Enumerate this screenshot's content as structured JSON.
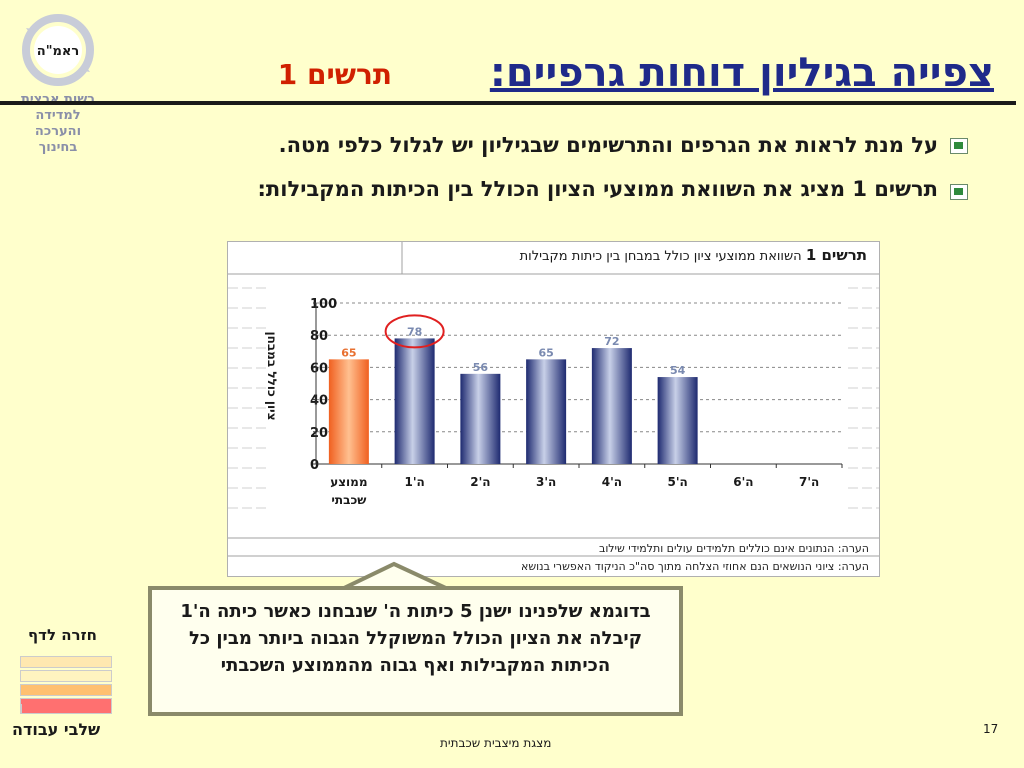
{
  "header": {
    "title": "צפייה בגיליון דוחות גרפיים:",
    "subtitle": "תרשים 1"
  },
  "logo": {
    "label": "ראמ\"ה",
    "org_lines": [
      "רשות ארצית",
      "למדידה",
      "והערכה",
      "בחינוך"
    ]
  },
  "bullets": [
    {
      "text": "על מנת לראות את הגרפים והתרשימים שבגיליון יש לגלול כלפי מטה.",
      "icon": "excel-icon"
    },
    {
      "text": "תרשים 1 מציג את השוואת ממוצעי הציון הכולל בין הכיתות המקבילות:",
      "icon": "excel-icon"
    }
  ],
  "chart_panel": {
    "title_bold": "תרשים 1",
    "title_rest": "השוואת ממוצעי ציון כולל במבחן בין כיתות מקבילות",
    "notes": [
      "הערה: הנתונים אינם כוללים תלמידים עולים ותלמידי שילוב",
      "הערה: ציוני הנושאים הנם אחוזי הצלחה מתוך סה\"כ הניקוד האפשרי בנושא"
    ]
  },
  "chart_data": {
    "type": "bar",
    "ylabel": "ציון כולל במבחן",
    "ylim": [
      0,
      100
    ],
    "yticks": [
      0,
      20,
      40,
      60,
      80,
      100
    ],
    "categories": [
      "ממוצע שכבתי",
      "ה'1",
      "ה'2",
      "ה'3",
      "ה'4",
      "ה'5",
      "ה'6",
      "ה'7"
    ],
    "values": [
      65,
      78,
      56,
      65,
      72,
      54,
      null,
      null
    ],
    "highlight_index": 1,
    "colors": {
      "average": "#f07030",
      "class": "#2a3a8a",
      "label_avg": "#e87030",
      "label_class": "#7a8ab0",
      "circle": "#e02020"
    },
    "grid": true
  },
  "callout": {
    "text": "בדוגמא שלפנינו ישנן 5 כיתות ה' שנבחנו כאשר כיתה ה'1 קיבלה את הציון הכולל המשוקלל הגבוה ביותר מבין כל הכיתות המקבילות ואף גבוה מהממוצע השכבתי"
  },
  "nav": {
    "back_link": "חזרה לדף",
    "work_stages": "שלבי עבודה"
  },
  "footer": {
    "text": "מצגת מיצבית שכבתית",
    "page_number": "17"
  }
}
